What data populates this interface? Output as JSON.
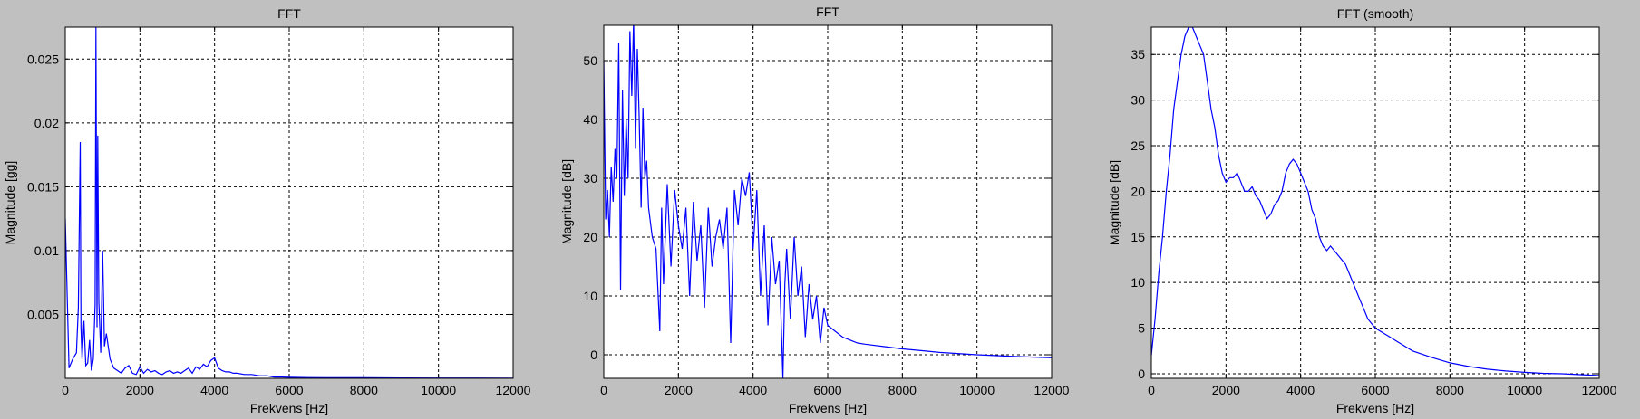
{
  "window": {
    "background": "#c0c0c0",
    "plot_background": "#ffffff",
    "line_color": "#0000ff"
  },
  "chart_data": [
    {
      "type": "line",
      "title": "FFT",
      "xlabel": "Frekvens [Hz]",
      "ylabel": "Magnitude [gg]",
      "xlim": [
        0,
        12000
      ],
      "ylim": [
        0,
        0.0275
      ],
      "xticks": [
        0,
        2000,
        4000,
        6000,
        8000,
        10000,
        12000
      ],
      "yticks": [
        0.005,
        0.01,
        0.015,
        0.02,
        0.025
      ],
      "ytick_labels": [
        "0.005",
        "0.01",
        "0.015",
        "0.02",
        "0.025"
      ],
      "grid": true,
      "series": [
        {
          "x": [
            0,
            100,
            200,
            300,
            350,
            400,
            420,
            450,
            500,
            550,
            600,
            650,
            700,
            750,
            800,
            820,
            850,
            870,
            900,
            950,
            1000,
            1050,
            1100,
            1200,
            1300,
            1400,
            1500,
            1600,
            1700,
            1800,
            1900,
            2000,
            2100,
            2200,
            2300,
            2400,
            2500,
            2600,
            2700,
            2800,
            2900,
            3000,
            3100,
            3200,
            3300,
            3400,
            3500,
            3600,
            3700,
            3800,
            3900,
            4000,
            4100,
            4200,
            4300,
            4400,
            4500,
            4600,
            4800,
            5000,
            5200,
            5400,
            5600,
            5800,
            6000,
            6500,
            7000,
            8000,
            9000,
            10000,
            11000,
            12000
          ],
          "y": [
            0.0125,
            0.0008,
            0.0015,
            0.002,
            0.0055,
            0.0185,
            0.004,
            0.0015,
            0.0045,
            0.001,
            0.0012,
            0.003,
            0.0006,
            0.0015,
            0.0058,
            0.0275,
            0.004,
            0.019,
            0.006,
            0.002,
            0.01,
            0.0025,
            0.0035,
            0.0015,
            0.0008,
            0.0006,
            0.0004,
            0.0008,
            0.001,
            0.0004,
            0.0003,
            0.0009,
            0.0004,
            0.0007,
            0.0005,
            0.0006,
            0.0004,
            0.0003,
            0.0005,
            0.0006,
            0.0004,
            0.0005,
            0.0004,
            0.0006,
            0.0008,
            0.0004,
            0.0009,
            0.0007,
            0.0011,
            0.0009,
            0.0014,
            0.0016,
            0.0008,
            0.0006,
            0.0005,
            0.0005,
            0.0004,
            0.0004,
            0.0003,
            0.0003,
            0.0002,
            0.0002,
            0.0001,
            0.0001,
            8e-05,
            6e-05,
            5e-05,
            4e-05,
            3e-05,
            2e-05,
            2e-05,
            1e-05
          ]
        }
      ]
    },
    {
      "type": "line",
      "title": "FFT",
      "xlabel": "Frekvens [Hz]",
      "ylabel": "Magnitude [dB]",
      "xlim": [
        0,
        12000
      ],
      "ylim": [
        -4,
        56
      ],
      "xticks": [
        0,
        2000,
        4000,
        6000,
        8000,
        10000,
        12000
      ],
      "yticks": [
        0,
        10,
        20,
        30,
        40,
        50
      ],
      "ytick_labels": [
        "0",
        "10",
        "20",
        "30",
        "40",
        "50"
      ],
      "grid": true,
      "series": [
        {
          "x": [
            0,
            50,
            100,
            150,
            200,
            250,
            300,
            350,
            400,
            450,
            500,
            550,
            600,
            650,
            700,
            750,
            800,
            850,
            900,
            950,
            1000,
            1050,
            1100,
            1150,
            1200,
            1300,
            1400,
            1500,
            1550,
            1600,
            1700,
            1800,
            1900,
            2000,
            2100,
            2200,
            2300,
            2400,
            2500,
            2600,
            2700,
            2800,
            2900,
            3000,
            3100,
            3200,
            3300,
            3400,
            3500,
            3600,
            3700,
            3800,
            3900,
            3950,
            4000,
            4100,
            4200,
            4300,
            4400,
            4500,
            4600,
            4700,
            4800,
            4850,
            4900,
            5000,
            5100,
            5200,
            5300,
            5400,
            5500,
            5600,
            5700,
            5800,
            5900,
            6000,
            6200,
            6400,
            6600,
            6800,
            7000,
            7500,
            8000,
            8500,
            9000,
            10000,
            11000,
            12000
          ],
          "y": [
            50,
            23,
            28,
            20,
            32,
            26,
            35,
            30,
            53,
            11,
            45,
            27,
            40,
            30,
            55,
            44,
            57,
            35,
            52,
            40,
            25,
            42,
            30,
            33,
            25,
            20,
            18,
            4,
            25,
            12,
            29,
            15,
            28,
            22,
            18,
            25,
            10,
            26,
            16,
            22,
            8,
            25,
            15,
            20,
            23,
            18,
            25,
            2,
            28,
            22,
            30,
            27,
            31,
            25,
            18,
            28,
            10,
            22,
            5,
            20,
            12,
            16,
            -4,
            12,
            18,
            6,
            20,
            10,
            15,
            3,
            12,
            6,
            10,
            2,
            8,
            5,
            4,
            3,
            2.5,
            2,
            1.8,
            1.4,
            1.0,
            0.7,
            0.4,
            0,
            -0.3,
            -0.5
          ]
        }
      ]
    },
    {
      "type": "line",
      "title": "FFT (smooth)",
      "xlabel": "Frekvens [Hz]",
      "ylabel": "Magnitude [dB]",
      "xlim": [
        0,
        12000
      ],
      "ylim": [
        -0.5,
        38
      ],
      "xticks": [
        0,
        2000,
        4000,
        6000,
        8000,
        10000,
        12000
      ],
      "yticks": [
        0,
        5,
        10,
        15,
        20,
        25,
        30,
        35
      ],
      "ytick_labels": [
        "0",
        "5",
        "10",
        "15",
        "20",
        "25",
        "30",
        "35"
      ],
      "grid": true,
      "series": [
        {
          "x": [
            0,
            100,
            200,
            300,
            400,
            500,
            600,
            700,
            800,
            900,
            1000,
            1100,
            1200,
            1300,
            1400,
            1500,
            1600,
            1700,
            1800,
            1900,
            2000,
            2100,
            2200,
            2300,
            2400,
            2500,
            2600,
            2700,
            2800,
            2900,
            3000,
            3100,
            3200,
            3300,
            3400,
            3500,
            3600,
            3700,
            3800,
            3900,
            4000,
            4100,
            4200,
            4300,
            4400,
            4500,
            4600,
            4700,
            4800,
            4900,
            5000,
            5100,
            5200,
            5300,
            5400,
            5500,
            5600,
            5700,
            5800,
            5900,
            6000,
            6200,
            6400,
            6600,
            6800,
            7000,
            7500,
            8000,
            8500,
            9000,
            9500,
            10000,
            10500,
            11000,
            11500,
            12000
          ],
          "y": [
            2,
            6,
            11,
            15,
            20,
            24,
            29,
            32,
            35,
            37,
            38,
            38,
            37,
            36,
            35,
            32,
            29,
            27,
            24,
            22,
            21,
            21.5,
            21.5,
            22,
            21,
            20,
            20,
            20.5,
            19.5,
            19,
            18,
            17,
            17.5,
            18.5,
            19,
            20,
            22,
            23,
            23.5,
            23,
            22,
            21,
            20,
            18,
            17,
            15,
            14,
            13.5,
            14,
            13.5,
            13,
            12.5,
            12,
            11,
            10,
            9,
            8,
            7,
            6,
            5.5,
            5,
            4.5,
            4,
            3.5,
            3,
            2.5,
            1.8,
            1.2,
            0.8,
            0.5,
            0.3,
            0.15,
            0.05,
            0,
            -0.1,
            -0.2
          ]
        }
      ]
    }
  ]
}
